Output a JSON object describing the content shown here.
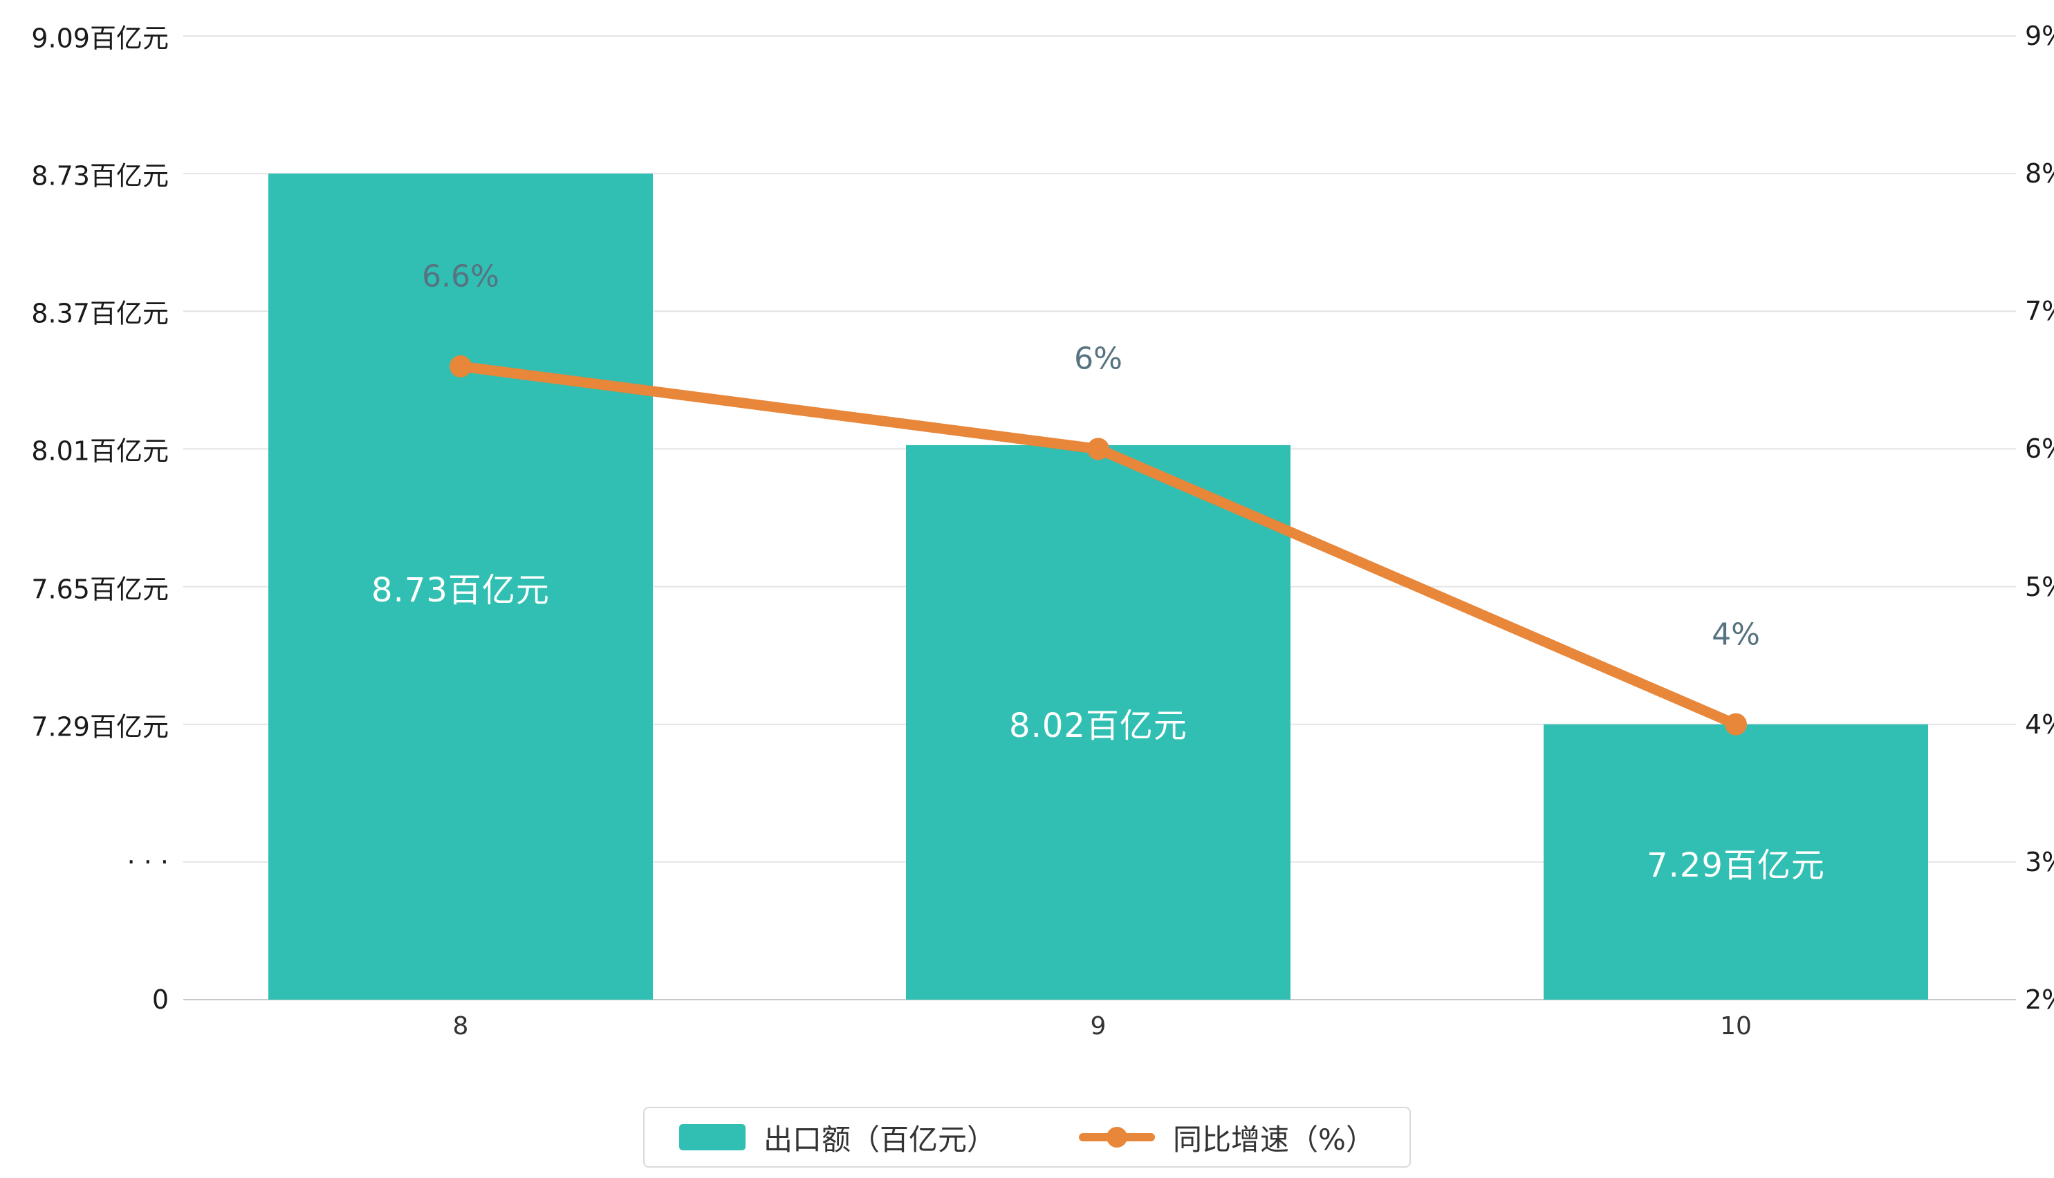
{
  "page": {
    "background": "#ffffff"
  },
  "chart_data": {
    "type": "bar",
    "subtype": "bar-line-combo",
    "categories": [
      "8",
      "9",
      "10"
    ],
    "series": [
      {
        "name": "出口额（百亿元）",
        "type": "bar",
        "values": [
          8.73,
          8.02,
          7.29
        ],
        "labels": [
          "8.73百亿元",
          "8.02百亿元",
          "7.29百亿元"
        ],
        "color": "#30bfb2"
      },
      {
        "name": "同比增速（%）",
        "type": "line",
        "values": [
          6.6,
          6,
          4
        ],
        "labels": [
          "6.6%",
          "6%",
          "4%"
        ],
        "color": "#e8863a"
      }
    ],
    "title": "",
    "xlabel": "",
    "ylabel": "",
    "left_axis": {
      "tick_labels": [
        "9.09百亿元",
        "8.73百亿元",
        "8.37百亿元",
        "8.01百亿元",
        "7.65百亿元",
        "7.29百亿元",
        "· · ·",
        "0"
      ],
      "tick_values": [
        9.09,
        8.73,
        8.37,
        8.01,
        7.65,
        7.29,
        null,
        0
      ],
      "broken_axis": true,
      "unit": "百亿元"
    },
    "right_axis": {
      "tick_labels": [
        "9%",
        "8%",
        "7%",
        "6%",
        "5%",
        "4%",
        "3%",
        "2%"
      ],
      "max": 9,
      "min": 2,
      "unit": "%"
    },
    "grid": true,
    "colors": {
      "bar": "#30bfb2",
      "line": "#e8863a",
      "line_label": "#577280",
      "gridline": "#e4e4e4",
      "baseline": "#c6c9cc",
      "bar_label": "#ffffff",
      "axis_text": "#1a1a1a"
    },
    "legend": {
      "position": "bottom",
      "items": [
        {
          "label": "出口额（百亿元）",
          "marker": "rect",
          "color": "#30bfb2"
        },
        {
          "label": "同比增速（%）",
          "marker": "line-dot",
          "color": "#e8863a"
        }
      ]
    }
  }
}
